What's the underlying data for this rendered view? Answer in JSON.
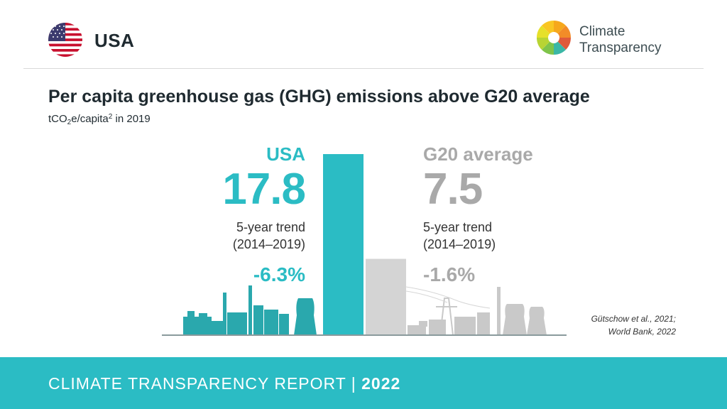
{
  "header": {
    "country": "USA",
    "logo_line1": "Climate",
    "logo_line2": "Transparency"
  },
  "chart_data": {
    "type": "bar",
    "title": "Per capita greenhouse gas (GHG) emissions above G20 average",
    "subtitle_prefix": "tCO",
    "subtitle_sub": "2",
    "subtitle_mid": "e/capita",
    "subtitle_sup": "2",
    "subtitle_suffix": " in 2019",
    "categories": [
      "USA",
      "G20 average"
    ],
    "values": [
      17.8,
      7.5
    ],
    "value_labels": [
      "17.8",
      "7.5"
    ],
    "trend_label": "5-year trend",
    "trend_period": "(2014–2019)",
    "trends": [
      "-6.3%",
      "-1.6%"
    ],
    "colors": [
      "#2bbcc4",
      "#d4d4d4"
    ],
    "text_colors": [
      "#2bbcc4",
      "#a9a9a9"
    ],
    "source_line1": "Gütschow et al., 2021;",
    "source_line2": "World Bank, 2022"
  },
  "footer": {
    "report_title": "CLIMATE TRANSPARENCY REPORT | ",
    "year": "2022"
  }
}
